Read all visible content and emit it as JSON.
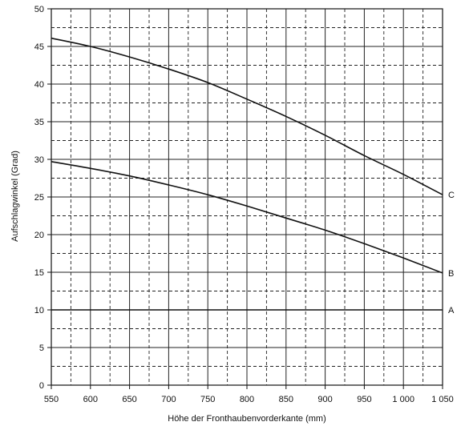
{
  "chart_data": {
    "type": "line",
    "title": "",
    "xlabel": "Höhe der Fronthaubenvorderkante (mm)",
    "ylabel": "Aufschlagwinkel (Grad)",
    "xlim": [
      550,
      1050
    ],
    "ylim": [
      0,
      50
    ],
    "x_ticks": [
      550,
      600,
      650,
      700,
      750,
      800,
      850,
      900,
      950,
      1000,
      1050
    ],
    "x_tick_labels": [
      "550",
      "600",
      "650",
      "700",
      "750",
      "800",
      "850",
      "900",
      "950",
      "1 000",
      "1 050"
    ],
    "y_ticks": [
      0,
      5,
      10,
      15,
      20,
      25,
      30,
      35,
      40,
      45,
      50
    ],
    "y_tick_labels": [
      "0",
      "5",
      "10",
      "15",
      "20",
      "25",
      "30",
      "35",
      "40",
      "45",
      "50"
    ],
    "grid": true,
    "series": [
      {
        "name": "C",
        "x": [
          550,
          600,
          650,
          700,
          750,
          800,
          850,
          900,
          950,
          1000,
          1050
        ],
        "y": [
          46.1,
          45.0,
          43.6,
          42.0,
          40.2,
          38.0,
          35.7,
          33.2,
          30.5,
          28.0,
          25.3
        ],
        "color": "#111111"
      },
      {
        "name": "B",
        "x": [
          550,
          600,
          650,
          700,
          750,
          800,
          850,
          900,
          950,
          1000,
          1050
        ],
        "y": [
          29.7,
          28.8,
          27.8,
          26.6,
          25.3,
          23.8,
          22.2,
          20.6,
          18.8,
          16.9,
          14.9
        ],
        "color": "#111111"
      },
      {
        "name": "A",
        "x": [
          550,
          1050
        ],
        "y": [
          10.0,
          10.0
        ],
        "color": "#111111"
      }
    ]
  }
}
